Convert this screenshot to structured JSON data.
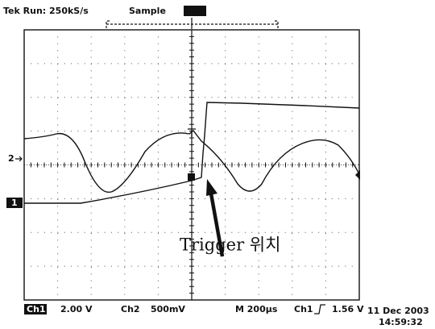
{
  "header": {
    "status": "Tek Run: 250kS/s",
    "mode": "Sample"
  },
  "markers": {
    "ch2": "2",
    "ch1": "1"
  },
  "annotation": "Trigger 위치",
  "footer": {
    "ch1": "Ch1",
    "ch1_scale": "2.00 V",
    "ch2": "Ch2",
    "ch2_scale": "500mV",
    "timebase": "M 200µs",
    "trigger_source": "Ch1",
    "trigger_level": "1.56 V",
    "date": "11 Dec 2003",
    "time": "14:59:32"
  }
}
